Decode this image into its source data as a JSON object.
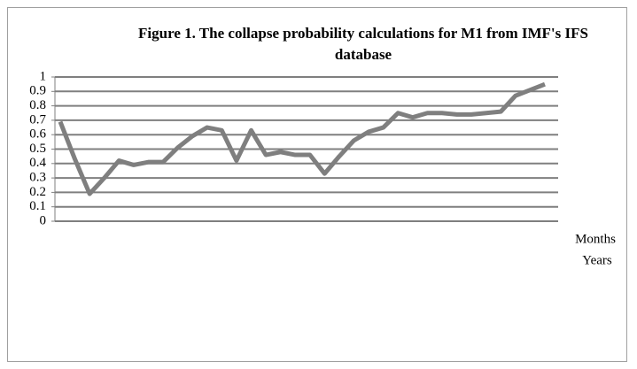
{
  "chart_data": {
    "type": "line",
    "title": "Figure 1. The collapse probability calculations for M1 from IMF's IFS database",
    "x_label": "Months",
    "x_label_2": "Years",
    "categories": [
      null,
      null,
      null,
      null,
      null,
      null,
      null,
      null,
      null,
      null,
      null,
      null,
      null,
      null,
      null,
      null,
      null,
      null,
      null,
      null,
      null,
      null,
      null,
      null,
      null,
      null,
      null,
      null,
      null,
      null,
      null,
      null,
      null,
      null
    ],
    "series": [
      {
        "color": "#7f7f7f",
        "values": [
          0.69,
          0.43,
          0.19,
          0.3,
          0.42,
          0.39,
          0.41,
          0.41,
          0.51,
          0.59,
          0.65,
          0.63,
          0.42,
          0.63,
          0.46,
          0.48,
          0.46,
          0.46,
          0.33,
          0.45,
          0.56,
          0.62,
          0.65,
          0.75,
          0.72,
          0.75,
          0.75,
          0.74,
          0.74,
          0.75,
          0.76,
          0.87,
          0.91,
          0.95
        ]
      }
    ],
    "ylim": [
      0,
      1
    ],
    "yticks": [
      0,
      0.1,
      0.2,
      0.3,
      0.4,
      0.5,
      0.6,
      0.7,
      0.8,
      0.9,
      1
    ],
    "grid": true
  }
}
